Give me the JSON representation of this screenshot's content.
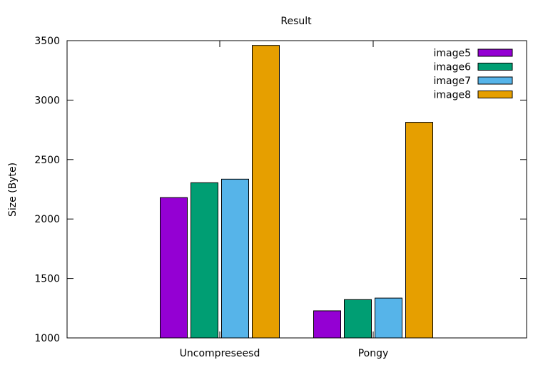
{
  "chart_data": {
    "type": "bar",
    "title": "Result",
    "xlabel": "",
    "ylabel": "Size (Byte)",
    "ylim": [
      1000,
      3500
    ],
    "yticks": [
      1000,
      1500,
      2000,
      2500,
      3000,
      3500
    ],
    "categories": [
      "Uncompreseesd",
      "Pongy"
    ],
    "series": [
      {
        "name": "image5",
        "color": "#9400d3",
        "values": [
          2180,
          1228
        ]
      },
      {
        "name": "image6",
        "color": "#009e73",
        "values": [
          2305,
          1322
        ]
      },
      {
        "name": "image7",
        "color": "#56b4e9",
        "values": [
          2335,
          1335
        ]
      },
      {
        "name": "image8",
        "color": "#e69f00",
        "values": [
          3460,
          2813
        ]
      }
    ],
    "legend_position": "top-right",
    "grid": false
  }
}
